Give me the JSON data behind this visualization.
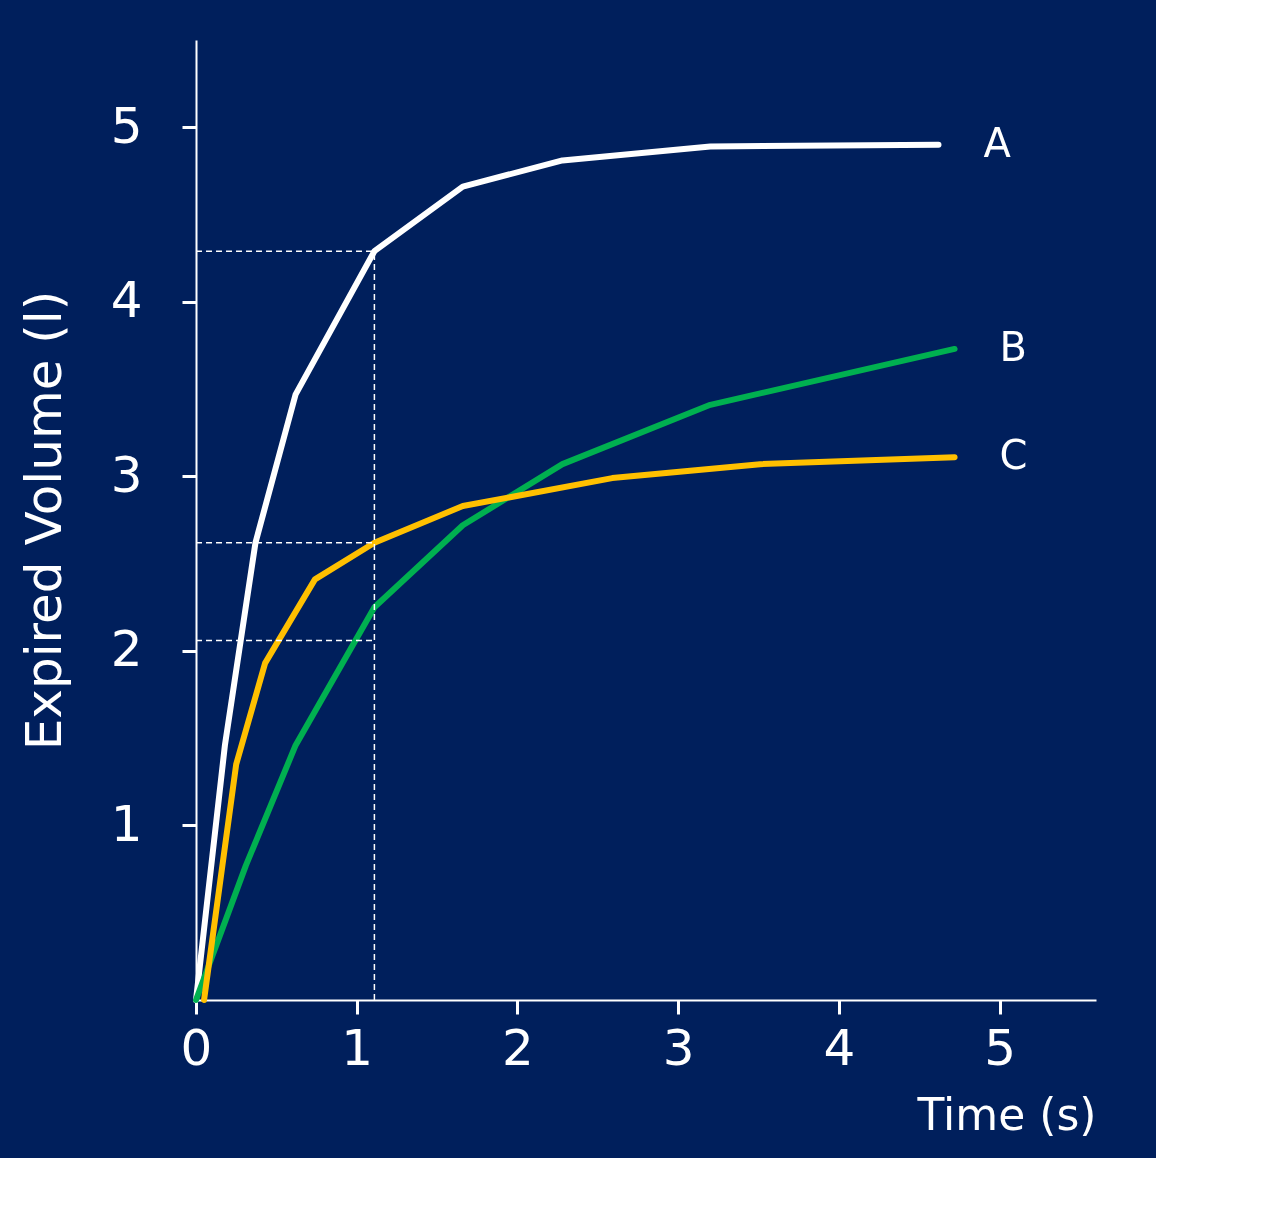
{
  "chart_data": {
    "type": "line",
    "xlabel": "Time (s)",
    "ylabel": "Expired Volume (l)",
    "xlim": [
      0,
      5.6
    ],
    "ylim": [
      0,
      5.5
    ],
    "xticks": [
      0,
      1,
      2,
      3,
      4,
      5
    ],
    "yticks": [
      1,
      2,
      3,
      4,
      5
    ],
    "grid": false,
    "marker": "none",
    "line_style": "solid",
    "series": [
      {
        "name": "A",
        "color": "#ffffff",
        "x": [
          0,
          0.18,
          0.37,
          0.62,
          1.11,
          1.66,
          2.28,
          3.2,
          4.62
        ],
        "values": [
          0,
          1.46,
          2.62,
          3.47,
          4.29,
          4.66,
          4.81,
          4.89,
          4.9
        ]
      },
      {
        "name": "B",
        "color": "#00b050",
        "x": [
          0,
          0.31,
          0.62,
          1.11,
          1.66,
          2.28,
          3.2,
          4.72
        ],
        "values": [
          0,
          0.77,
          1.46,
          2.25,
          2.72,
          3.07,
          3.41,
          3.73
        ]
      },
      {
        "name": "C",
        "color": "#ffc000",
        "x": [
          0.05,
          0.25,
          0.43,
          0.74,
          1.11,
          1.66,
          2.59,
          3.51,
          4.72
        ],
        "values": [
          0,
          1.35,
          1.93,
          2.41,
          2.62,
          2.83,
          2.99,
          3.07,
          3.11
        ]
      }
    ],
    "ref_lines": [
      {
        "axis": "y",
        "value": 4.29,
        "color": "#ffffff",
        "line_style": "dashed"
      },
      {
        "axis": "y",
        "value": 2.62,
        "color": "#ffffff",
        "line_style": "dashed"
      },
      {
        "axis": "y",
        "value": 2.06,
        "color": "#ffffff",
        "line_style": "dashed"
      },
      {
        "axis": "x",
        "value": 1.11,
        "color": "#ffffff",
        "line_style": "dashed"
      }
    ]
  }
}
